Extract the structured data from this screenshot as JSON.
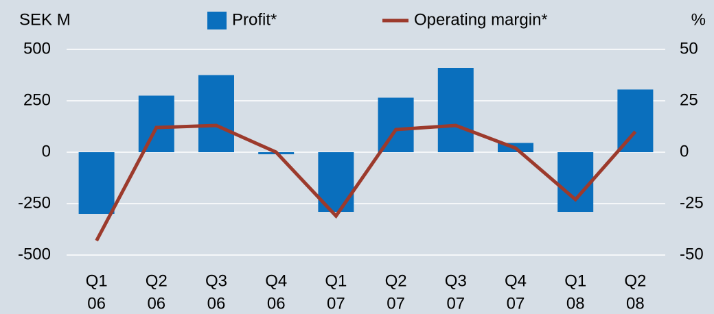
{
  "chart_data": {
    "type": "bar_line",
    "y_label": "SEK M",
    "y2_label": "%",
    "categories": [
      [
        "Q1",
        "06"
      ],
      [
        "Q2",
        "06"
      ],
      [
        "Q3",
        "06"
      ],
      [
        "Q4",
        "06"
      ],
      [
        "Q1",
        "07"
      ],
      [
        "Q2",
        "07"
      ],
      [
        "Q3",
        "07"
      ],
      [
        "Q4",
        "07"
      ],
      [
        "Q1",
        "08"
      ],
      [
        "Q2",
        "08"
      ]
    ],
    "series": [
      {
        "name": "Profit*",
        "type": "bar",
        "color": "#0a6fbd",
        "values": [
          -300,
          275,
          375,
          -10,
          -290,
          265,
          410,
          45,
          -290,
          305
        ]
      },
      {
        "name": "Operating margin*",
        "type": "line",
        "axis": "y2",
        "color": "#9c3a2c",
        "values": [
          -43,
          12,
          13,
          0,
          -31,
          11,
          13,
          2,
          -23,
          10
        ]
      }
    ],
    "ylim": [
      -500,
      500
    ],
    "yticks": [
      -500,
      -250,
      0,
      250,
      500
    ],
    "y2lim": [
      -50,
      50
    ],
    "y2ticks": [
      -50,
      -25,
      0,
      25,
      50
    ],
    "grid": true
  }
}
